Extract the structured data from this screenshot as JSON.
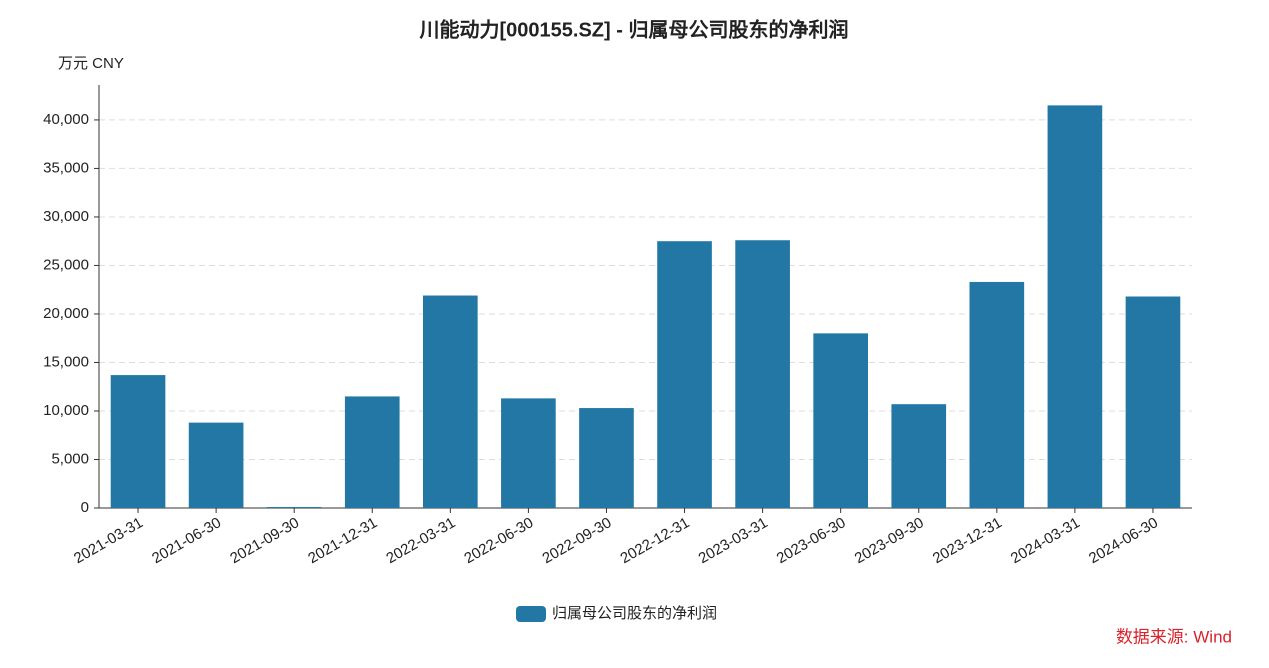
{
  "chart_data": {
    "type": "bar",
    "title": "川能动力[000155.SZ] - 归属母公司股东的净利润",
    "y_unit": "万元  CNY",
    "source": "数据来源: Wind",
    "categories": [
      "2021-03-31",
      "2021-06-30",
      "2021-09-30",
      "2021-12-31",
      "2022-03-31",
      "2022-06-30",
      "2022-09-30",
      "2022-12-31",
      "2023-03-31",
      "2023-06-30",
      "2023-09-30",
      "2023-12-31",
      "2024-03-31",
      "2024-06-30"
    ],
    "series": [
      {
        "name": "归属母公司股东的净利润",
        "color": "#2377a4",
        "values": [
          13700,
          8800,
          100,
          11500,
          21900,
          11300,
          10300,
          27500,
          27600,
          18000,
          10700,
          23300,
          41500,
          21800
        ]
      }
    ],
    "ylim": [
      0,
      43600
    ],
    "yticks": [
      0,
      {
        "value": 5000,
        "label": "5,000"
      },
      {
        "value": 10000,
        "label": "10,000"
      },
      {
        "value": 15000,
        "label": "15,000"
      },
      {
        "value": 20000,
        "label": "20,000"
      },
      {
        "value": 25000,
        "label": "25,000"
      },
      {
        "value": 30000,
        "label": "30,000"
      },
      {
        "value": 35000,
        "label": "35,000"
      },
      {
        "value": 40000,
        "label": "40,000"
      }
    ],
    "grid": true,
    "legend": "bottom"
  }
}
